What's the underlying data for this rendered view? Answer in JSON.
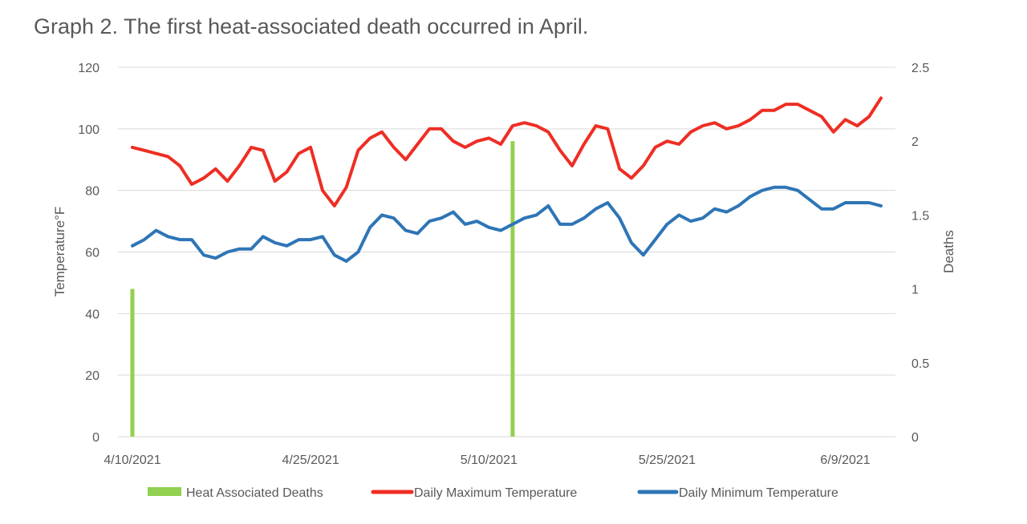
{
  "chart_data": {
    "type": "line",
    "title": "Graph 2. The first heat-associated death occurred in April.",
    "ylabel": "Temperature°F",
    "y2label": "Deaths",
    "ylim": [
      0,
      120
    ],
    "y2lim": [
      0,
      2.5
    ],
    "yticks": [
      0,
      20,
      40,
      60,
      80,
      100,
      120
    ],
    "y2ticks": [
      "0",
      "0.5",
      "1",
      "1.5",
      "2",
      "2.5"
    ],
    "x_start": "2021-04-10",
    "x_end": "2021-06-12",
    "xtick_labels": [
      "4/10/2021",
      "4/25/2021",
      "5/10/2021",
      "5/25/2021",
      "6/9/2021"
    ],
    "grid": true,
    "legend_position": "bottom",
    "bar_series": {
      "name": "Heat Associated Deaths",
      "color": "#92D050",
      "axis": "right",
      "points": [
        {
          "x": "2021-04-10",
          "y": 1
        },
        {
          "x": "2021-05-12",
          "y": 2
        }
      ]
    },
    "series": [
      {
        "name": "Daily Maximum Temperature",
        "color": "#EE2E24",
        "axis": "left",
        "x": [
          "2021-04-10",
          "2021-04-11",
          "2021-04-12",
          "2021-04-13",
          "2021-04-14",
          "2021-04-15",
          "2021-04-16",
          "2021-04-17",
          "2021-04-18",
          "2021-04-19",
          "2021-04-20",
          "2021-04-21",
          "2021-04-22",
          "2021-04-23",
          "2021-04-24",
          "2021-04-25",
          "2021-04-26",
          "2021-04-27",
          "2021-04-28",
          "2021-04-29",
          "2021-04-30",
          "2021-05-01",
          "2021-05-02",
          "2021-05-03",
          "2021-05-04",
          "2021-05-05",
          "2021-05-06",
          "2021-05-07",
          "2021-05-08",
          "2021-05-09",
          "2021-05-10",
          "2021-05-11",
          "2021-05-12",
          "2021-05-13",
          "2021-05-14",
          "2021-05-15",
          "2021-05-16",
          "2021-05-17",
          "2021-05-18",
          "2021-05-19",
          "2021-05-20",
          "2021-05-21",
          "2021-05-22",
          "2021-05-23",
          "2021-05-24",
          "2021-05-25",
          "2021-05-26",
          "2021-05-27",
          "2021-05-28",
          "2021-05-29",
          "2021-05-30",
          "2021-05-31",
          "2021-06-01",
          "2021-06-02",
          "2021-06-03",
          "2021-06-04",
          "2021-06-05",
          "2021-06-06",
          "2021-06-07",
          "2021-06-08",
          "2021-06-09",
          "2021-06-10",
          "2021-06-11",
          "2021-06-12"
        ],
        "values": [
          94,
          93,
          92,
          91,
          88,
          82,
          84,
          87,
          83,
          88,
          94,
          93,
          83,
          86,
          92,
          94,
          80,
          75,
          81,
          93,
          97,
          99,
          94,
          90,
          95,
          100,
          100,
          96,
          94,
          96,
          97,
          95,
          101,
          102,
          101,
          99,
          93,
          88,
          95,
          101,
          100,
          87,
          84,
          88,
          94,
          96,
          95,
          99,
          101,
          102,
          100,
          101,
          103,
          106,
          106,
          108,
          108,
          106,
          104,
          99,
          103,
          101,
          104,
          110
        ]
      },
      {
        "name": "Daily Minimum Temperature",
        "color": "#2E75B6",
        "axis": "left",
        "x": [
          "2021-04-10",
          "2021-04-11",
          "2021-04-12",
          "2021-04-13",
          "2021-04-14",
          "2021-04-15",
          "2021-04-16",
          "2021-04-17",
          "2021-04-18",
          "2021-04-19",
          "2021-04-20",
          "2021-04-21",
          "2021-04-22",
          "2021-04-23",
          "2021-04-24",
          "2021-04-25",
          "2021-04-26",
          "2021-04-27",
          "2021-04-28",
          "2021-04-29",
          "2021-04-30",
          "2021-05-01",
          "2021-05-02",
          "2021-05-03",
          "2021-05-04",
          "2021-05-05",
          "2021-05-06",
          "2021-05-07",
          "2021-05-08",
          "2021-05-09",
          "2021-05-10",
          "2021-05-11",
          "2021-05-12",
          "2021-05-13",
          "2021-05-14",
          "2021-05-15",
          "2021-05-16",
          "2021-05-17",
          "2021-05-18",
          "2021-05-19",
          "2021-05-20",
          "2021-05-21",
          "2021-05-22",
          "2021-05-23",
          "2021-05-24",
          "2021-05-25",
          "2021-05-26",
          "2021-05-27",
          "2021-05-28",
          "2021-05-29",
          "2021-05-30",
          "2021-05-31",
          "2021-06-01",
          "2021-06-02",
          "2021-06-03",
          "2021-06-04",
          "2021-06-05",
          "2021-06-06",
          "2021-06-07",
          "2021-06-08",
          "2021-06-09",
          "2021-06-10",
          "2021-06-11",
          "2021-06-12"
        ],
        "values": [
          62,
          64,
          67,
          65,
          64,
          64,
          59,
          58,
          60,
          61,
          61,
          65,
          63,
          62,
          64,
          64,
          65,
          59,
          57,
          60,
          68,
          72,
          71,
          67,
          66,
          70,
          71,
          73,
          69,
          70,
          68,
          67,
          69,
          71,
          72,
          75,
          69,
          69,
          71,
          74,
          76,
          71,
          63,
          59,
          64,
          69,
          72,
          70,
          71,
          74,
          73,
          75,
          78,
          80,
          81,
          81,
          80,
          77,
          74,
          74,
          76,
          76,
          76,
          75
        ]
      }
    ]
  }
}
